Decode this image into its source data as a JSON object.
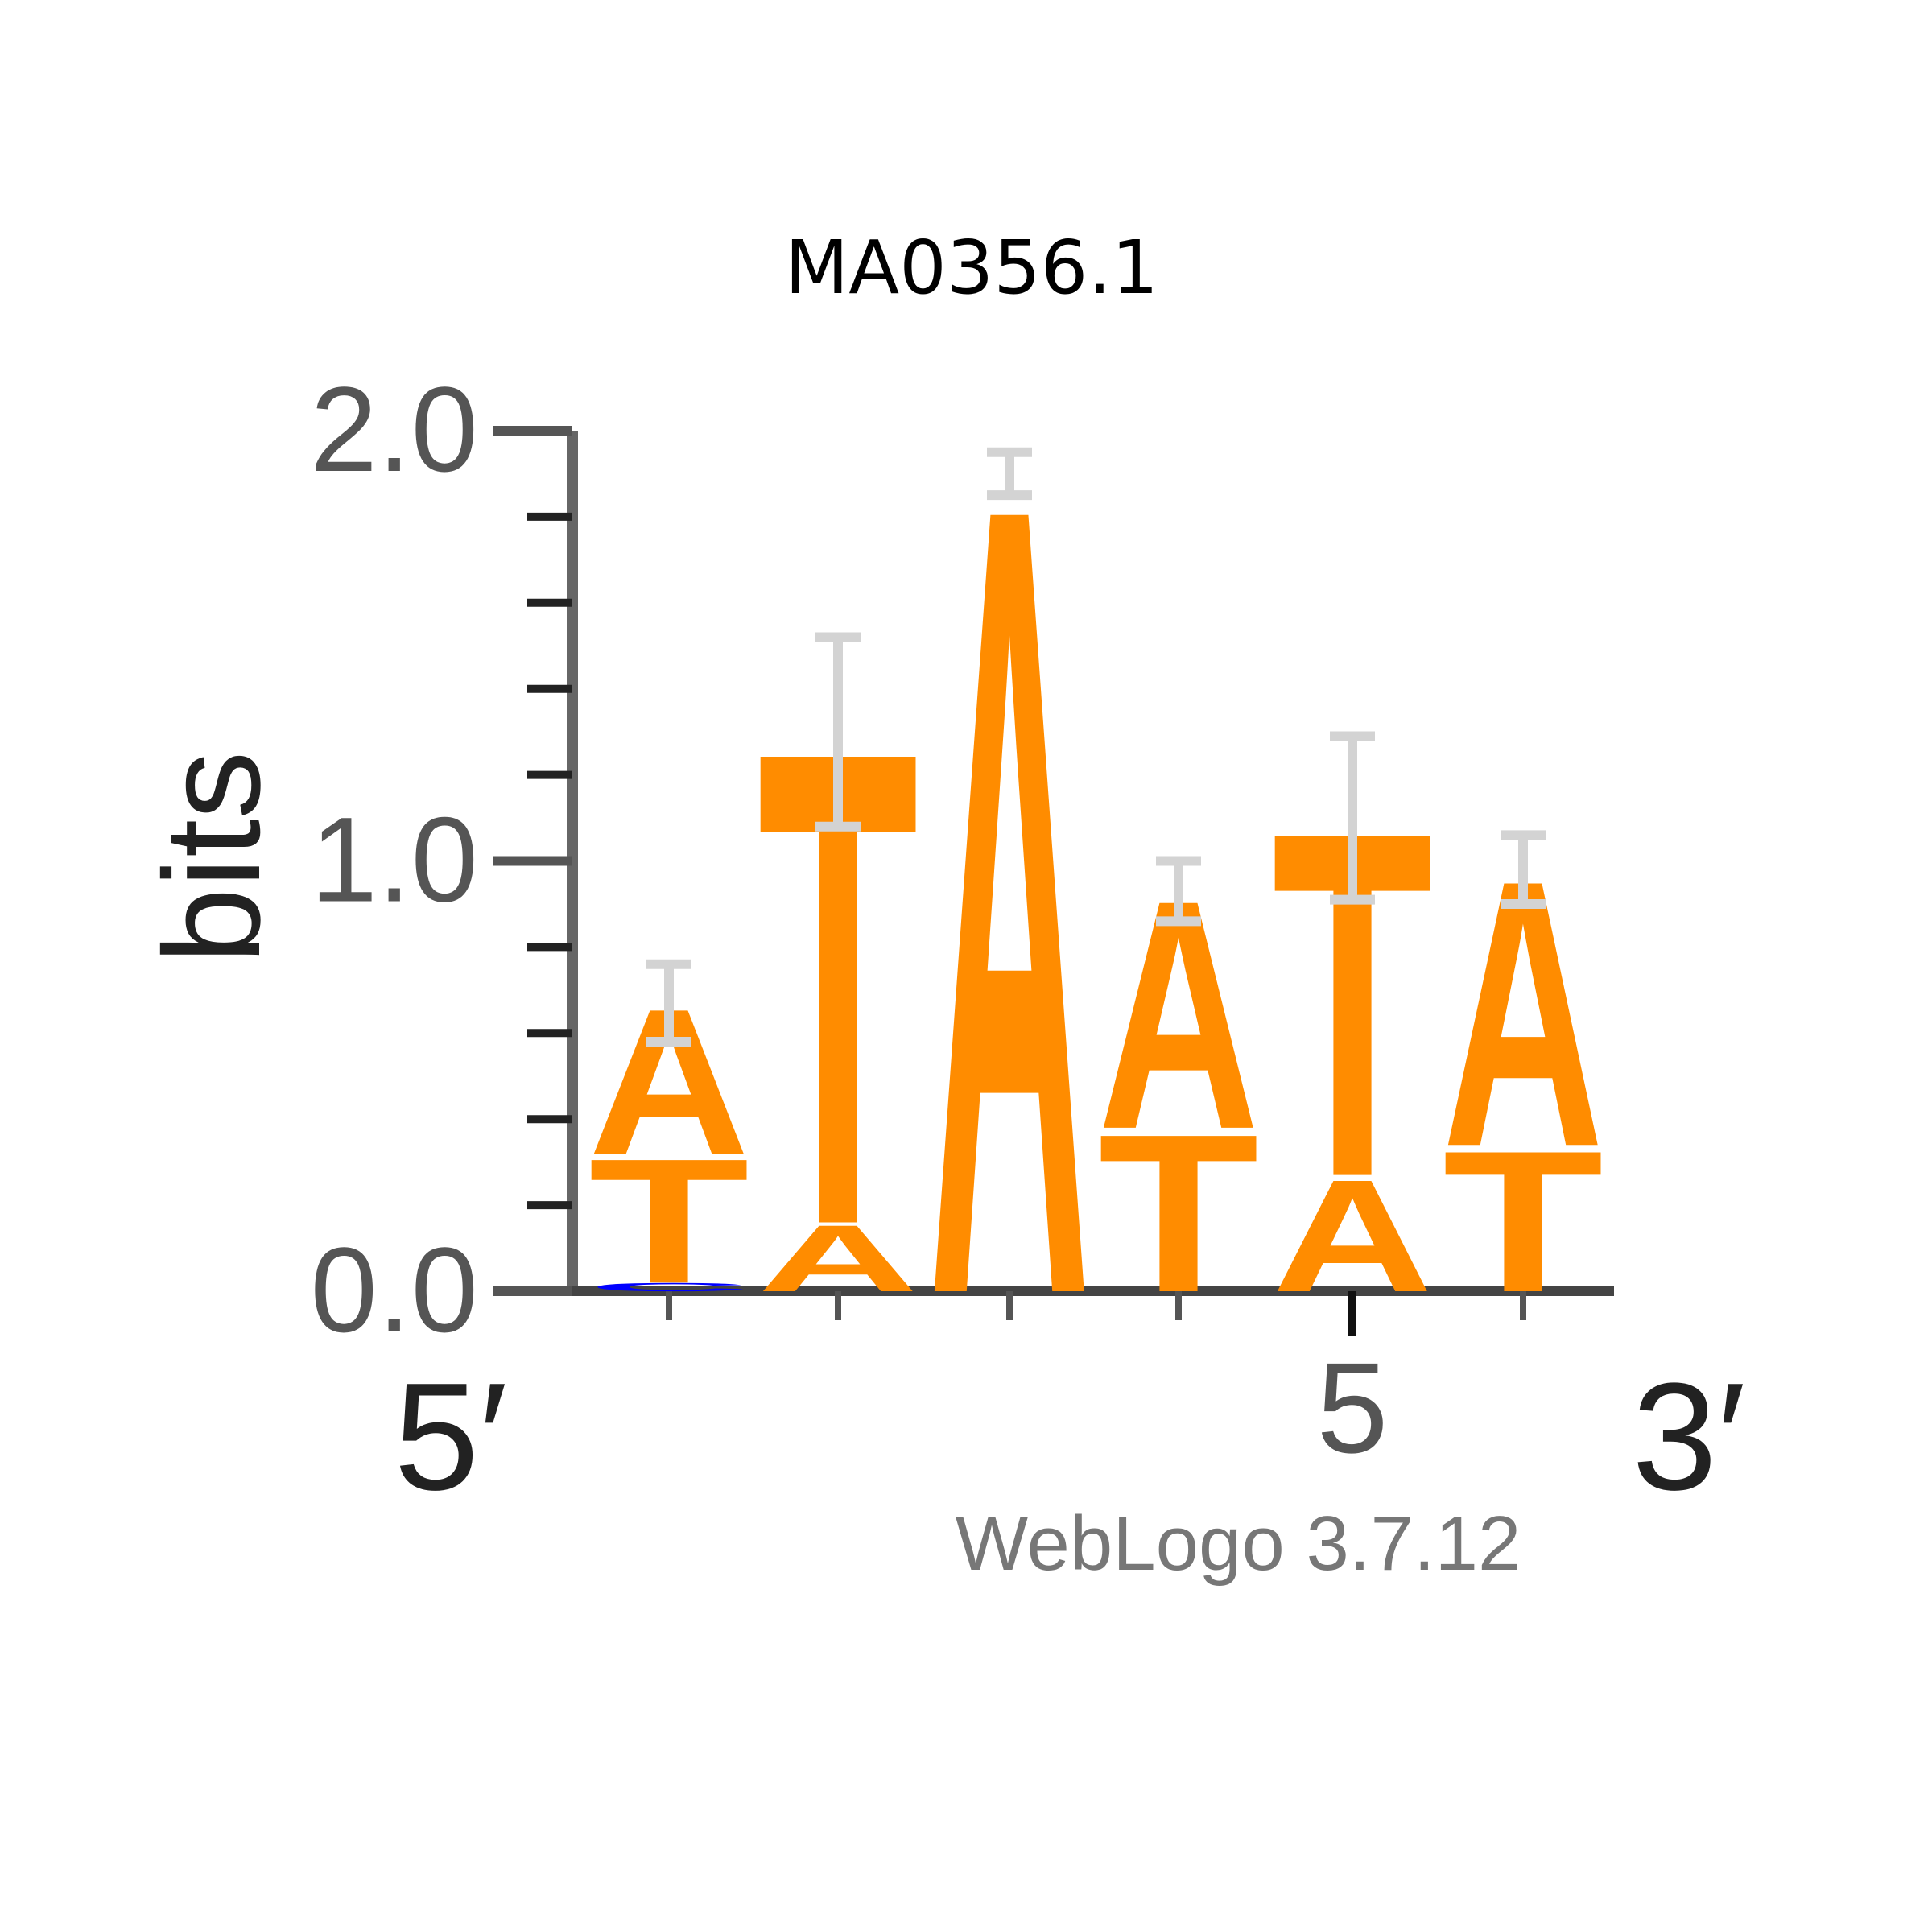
{
  "chart_data": {
    "type": "sequence-logo",
    "title": "MA0356.1",
    "ylabel": "bits",
    "ylim": [
      0,
      2.0
    ],
    "y_ticks": [
      "0.0",
      "1.0",
      "2.0"
    ],
    "x_ticks": [
      {
        "position": 1,
        "label": ""
      },
      {
        "position": 2,
        "label": ""
      },
      {
        "position": 3,
        "label": ""
      },
      {
        "position": 4,
        "label": ""
      },
      {
        "position": 5,
        "label": "5"
      },
      {
        "position": 6,
        "label": ""
      }
    ],
    "start_label": "5′",
    "end_label": "3′",
    "credit": "WebLogo 3.7.12",
    "colors": {
      "A": "#ff8c00",
      "T": "#ff8c00",
      "C": "#0000ff",
      "G": "#ffa500",
      "error": "#d3d3d3"
    },
    "positions": [
      {
        "index": 1,
        "total": 0.67,
        "error": 0.18,
        "letters": [
          {
            "base": "C",
            "bits": 0.02
          },
          {
            "base": "T",
            "bits": 0.3
          },
          {
            "base": "A",
            "bits": 0.35
          }
        ]
      },
      {
        "index": 2,
        "total": 1.3,
        "error": 0.44,
        "letters": [
          {
            "base": "A",
            "bits": 0.16
          },
          {
            "base": "T",
            "bits": 1.14
          }
        ]
      },
      {
        "index": 3,
        "total": 1.9,
        "error": 0.1,
        "letters": [
          {
            "base": "A",
            "bits": 1.9
          }
        ]
      },
      {
        "index": 4,
        "total": 0.93,
        "error": 0.14,
        "letters": [
          {
            "base": "T",
            "bits": 0.38
          },
          {
            "base": "A",
            "bits": 0.55
          }
        ]
      },
      {
        "index": 5,
        "total": 1.1,
        "error": 0.38,
        "letters": [
          {
            "base": "A",
            "bits": 0.27
          },
          {
            "base": "T",
            "bits": 0.83
          }
        ]
      },
      {
        "index": 6,
        "total": 0.98,
        "error": 0.16,
        "letters": [
          {
            "base": "T",
            "bits": 0.34
          },
          {
            "base": "A",
            "bits": 0.64
          }
        ]
      }
    ]
  }
}
